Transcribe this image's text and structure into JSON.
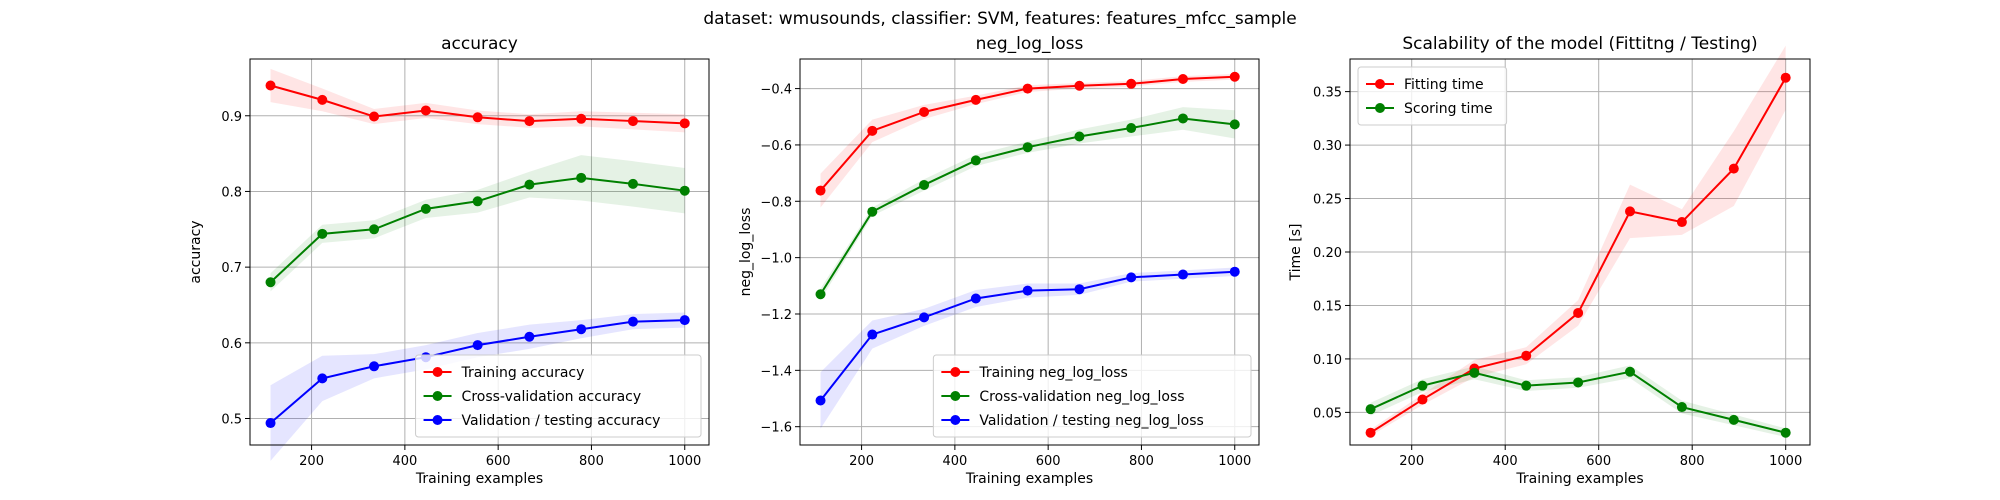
{
  "suptitle": "dataset: wmusounds, classifier: SVM, features: features_mfcc_sample",
  "colors": {
    "training": "#ff0000",
    "cv": "#008000",
    "validation": "#0000ff"
  },
  "chart_data": [
    {
      "type": "line",
      "title": "accuracy",
      "xlabel": "Training examples",
      "ylabel": "accuracy",
      "xlim": [
        68,
        1052
      ],
      "ylim": [
        0.465,
        0.975
      ],
      "xticks": [
        200,
        400,
        600,
        800,
        1000
      ],
      "yticks": [
        0.5,
        0.6,
        0.7,
        0.8,
        0.9
      ],
      "ytick_labels": [
        "0.5",
        "0.6",
        "0.7",
        "0.8",
        "0.9"
      ],
      "grid": true,
      "legend_position": "lower-right",
      "x": [
        112,
        223,
        334,
        445,
        556,
        667,
        778,
        889,
        1000
      ],
      "series": [
        {
          "name": "Training accuracy",
          "color": "#ff0000",
          "values": [
            0.94,
            0.921,
            0.899,
            0.907,
            0.898,
            0.893,
            0.896,
            0.893,
            0.89
          ],
          "band": [
            0.022,
            0.015,
            0.01,
            0.01,
            0.009,
            0.009,
            0.01,
            0.011,
            0.012
          ]
        },
        {
          "name": "Cross-validation accuracy",
          "color": "#008000",
          "values": [
            0.68,
            0.744,
            0.75,
            0.777,
            0.787,
            0.809,
            0.818,
            0.81,
            0.801
          ],
          "band": [
            0.012,
            0.012,
            0.012,
            0.012,
            0.015,
            0.017,
            0.03,
            0.03,
            0.03
          ]
        },
        {
          "name": "Validation / testing accuracy",
          "color": "#0000ff",
          "values": [
            0.494,
            0.553,
            0.569,
            0.581,
            0.597,
            0.608,
            0.618,
            0.628,
            0.63
          ],
          "band": [
            0.05,
            0.03,
            0.016,
            0.016,
            0.016,
            0.016,
            0.012,
            0.01,
            0.01
          ]
        }
      ]
    },
    {
      "type": "line",
      "title": "neg_log_loss",
      "xlabel": "Training examples",
      "ylabel": "neg_log_loss",
      "xlim": [
        68,
        1052
      ],
      "ylim": [
        -1.665,
        -0.295
      ],
      "xticks": [
        200,
        400,
        600,
        800,
        1000
      ],
      "yticks": [
        -1.6,
        -1.4,
        -1.2,
        -1.0,
        -0.8,
        -0.6,
        -0.4
      ],
      "ytick_labels": [
        "−1.6",
        "−1.4",
        "−1.2",
        "−1.0",
        "−0.8",
        "−0.6",
        "−0.4"
      ],
      "grid": true,
      "legend_position": "lower-right",
      "x": [
        112,
        223,
        334,
        445,
        556,
        667,
        778,
        889,
        1000
      ],
      "series": [
        {
          "name": "Training neg_log_loss",
          "color": "#ff0000",
          "values": [
            -0.762,
            -0.55,
            -0.483,
            -0.44,
            -0.4,
            -0.39,
            -0.383,
            -0.366,
            -0.358
          ],
          "band": [
            0.06,
            0.04,
            0.025,
            0.015,
            0.012,
            0.01,
            0.01,
            0.01,
            0.01
          ]
        },
        {
          "name": "Cross-validation neg_log_loss",
          "color": "#008000",
          "values": [
            -1.13,
            -0.837,
            -0.742,
            -0.655,
            -0.608,
            -0.57,
            -0.54,
            -0.506,
            -0.527
          ],
          "band": [
            0.02,
            0.015,
            0.02,
            0.02,
            0.02,
            0.025,
            0.03,
            0.04,
            0.05
          ]
        },
        {
          "name": "Validation / testing neg_log_loss",
          "color": "#0000ff",
          "values": [
            -1.507,
            -1.273,
            -1.212,
            -1.145,
            -1.117,
            -1.112,
            -1.07,
            -1.06,
            -1.05
          ],
          "band": [
            0.1,
            0.05,
            0.03,
            0.03,
            0.025,
            0.02,
            0.015,
            0.015,
            0.015
          ]
        }
      ]
    },
    {
      "type": "line",
      "title": "Scalability of the model (Fittitng / Testing)",
      "xlabel": "Training examples",
      "ylabel": "Time [s]",
      "xlim": [
        68,
        1052
      ],
      "ylim": [
        0.0195,
        0.3805
      ],
      "xticks": [
        200,
        400,
        600,
        800,
        1000
      ],
      "yticks": [
        0.05,
        0.1,
        0.15,
        0.2,
        0.25,
        0.3,
        0.35
      ],
      "ytick_labels": [
        "0.05",
        "0.10",
        "0.15",
        "0.20",
        "0.25",
        "0.30",
        "0.35"
      ],
      "grid": true,
      "legend_position": "upper-left",
      "x": [
        112,
        223,
        334,
        445,
        556,
        667,
        778,
        889,
        1000
      ],
      "series": [
        {
          "name": "Fitting time",
          "color": "#ff0000",
          "values": [
            0.031,
            0.062,
            0.091,
            0.103,
            0.143,
            0.238,
            0.228,
            0.278,
            0.363
          ],
          "band": [
            0.003,
            0.005,
            0.008,
            0.008,
            0.012,
            0.025,
            0.012,
            0.035,
            0.03
          ]
        },
        {
          "name": "Scoring time",
          "color": "#008000",
          "values": [
            0.053,
            0.075,
            0.087,
            0.075,
            0.078,
            0.088,
            0.055,
            0.043,
            0.031
          ],
          "band": [
            0.006,
            0.006,
            0.006,
            0.005,
            0.005,
            0.006,
            0.006,
            0.005,
            0.004
          ]
        }
      ]
    }
  ]
}
